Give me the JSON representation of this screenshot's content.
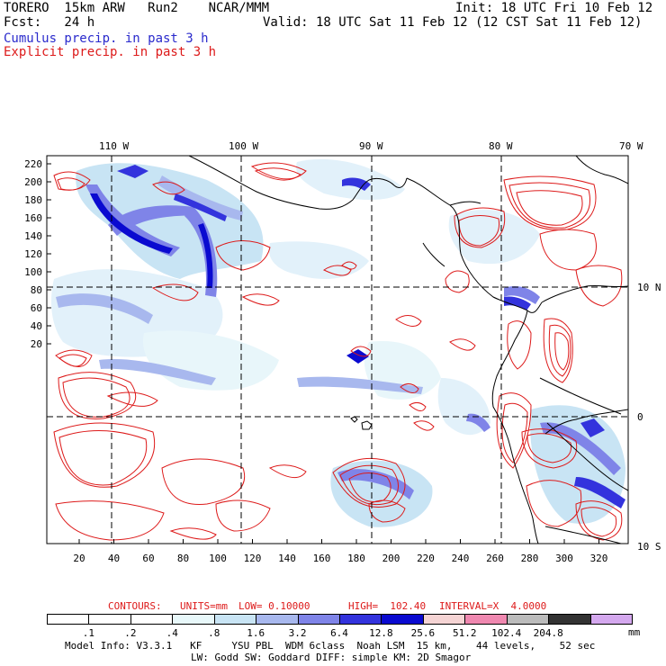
{
  "header": {
    "line1_left": "TORERO  15km ARW   Run2    NCAR/MMM",
    "line1_right": "Init: 18 UTC Fri 10 Feb 12",
    "line2_left": "Fcst:   24 h",
    "line2_right": "Valid: 18 UTC Sat 11 Feb 12 (12 CST Sat 11 Feb 12)",
    "legend_cumulus": "Cumulus precip. in past 3 h",
    "legend_explicit": "Explicit precip. in past 3 h"
  },
  "map": {
    "lon_labels": [
      "110 W",
      "100 W",
      "90 W",
      "80 W",
      "70 W"
    ],
    "lat_labels": [
      "10 N",
      "0",
      "10 S"
    ],
    "y_ticks": [
      "220",
      "200",
      "180",
      "160",
      "140",
      "120",
      "100",
      "80",
      "60",
      "40",
      "20"
    ],
    "x_ticks": [
      "20",
      "40",
      "60",
      "80",
      "100",
      "120",
      "140",
      "160",
      "180",
      "200",
      "220",
      "240",
      "260",
      "280",
      "300",
      "320"
    ],
    "colors": {
      "coast": "#000000",
      "contour": "#dd1a1a",
      "grid": "#000000"
    }
  },
  "contour_info": {
    "contours": "CONTOURS:",
    "units": "UNITS=mm",
    "low": "LOW= 0.10000",
    "high": "HIGH=  102.40",
    "interval": "INTERVAL=X  4.0000"
  },
  "colorbar": {
    "labels": [
      ".1",
      ".2",
      ".4",
      ".8",
      "1.6",
      "3.2",
      "6.4",
      "12.8",
      "25.6",
      "51.2",
      "102.4",
      "204.8"
    ],
    "unit": "mm",
    "colors": [
      "#ffffff",
      "#ffffff",
      "#ffffff",
      "#e8f8fa",
      "#c8e4f4",
      "#a8b8ee",
      "#7f84e8",
      "#3333dd",
      "#0a0ad0",
      "#f5d4d4",
      "#ef88b0",
      "#bcbcbc",
      "#333333",
      "#d4a8ee"
    ]
  },
  "footer": {
    "line1": "Model Info: V3.3.1   KF     YSU PBL  WDM 6class  Noah LSM  15 km,    44 levels,    52 sec",
    "line2": "LW: Godd SW: Goddard DIFF: simple KM: 2D Smagor"
  }
}
